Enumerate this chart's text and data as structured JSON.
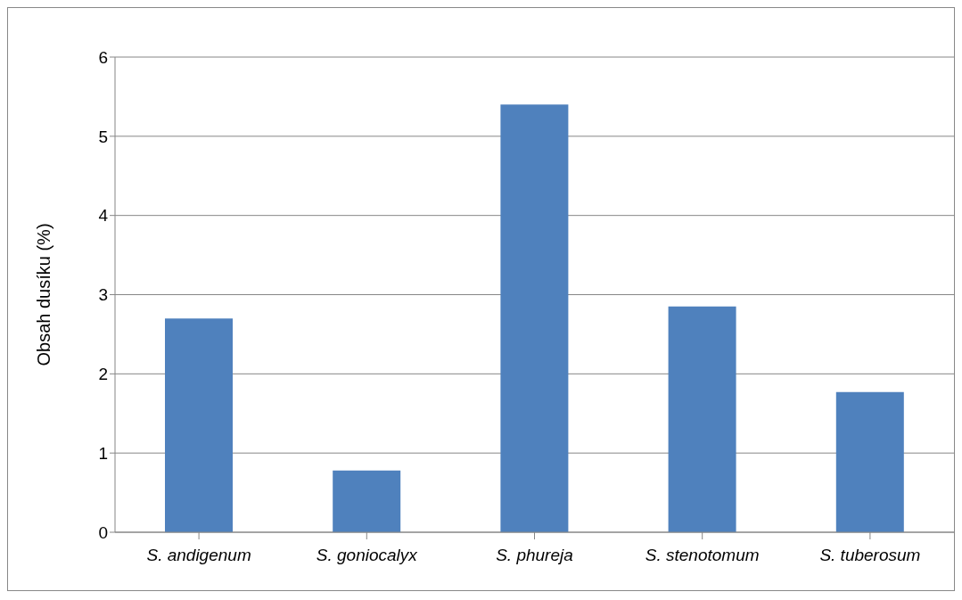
{
  "chart_data": {
    "type": "bar",
    "ylabel": "Obsah dusíku (%)",
    "categories": [
      "S. andigenum",
      "S. goniocalyx",
      "S. phureja",
      "S. stenotomum",
      "S. tuberosum"
    ],
    "values": [
      2.7,
      0.78,
      5.4,
      2.85,
      1.77
    ],
    "color": "#4f81bd",
    "ylim": [
      0,
      6
    ],
    "yticks": [
      0,
      1,
      2,
      3,
      4,
      5,
      6
    ],
    "grid": "y",
    "legend": false
  }
}
